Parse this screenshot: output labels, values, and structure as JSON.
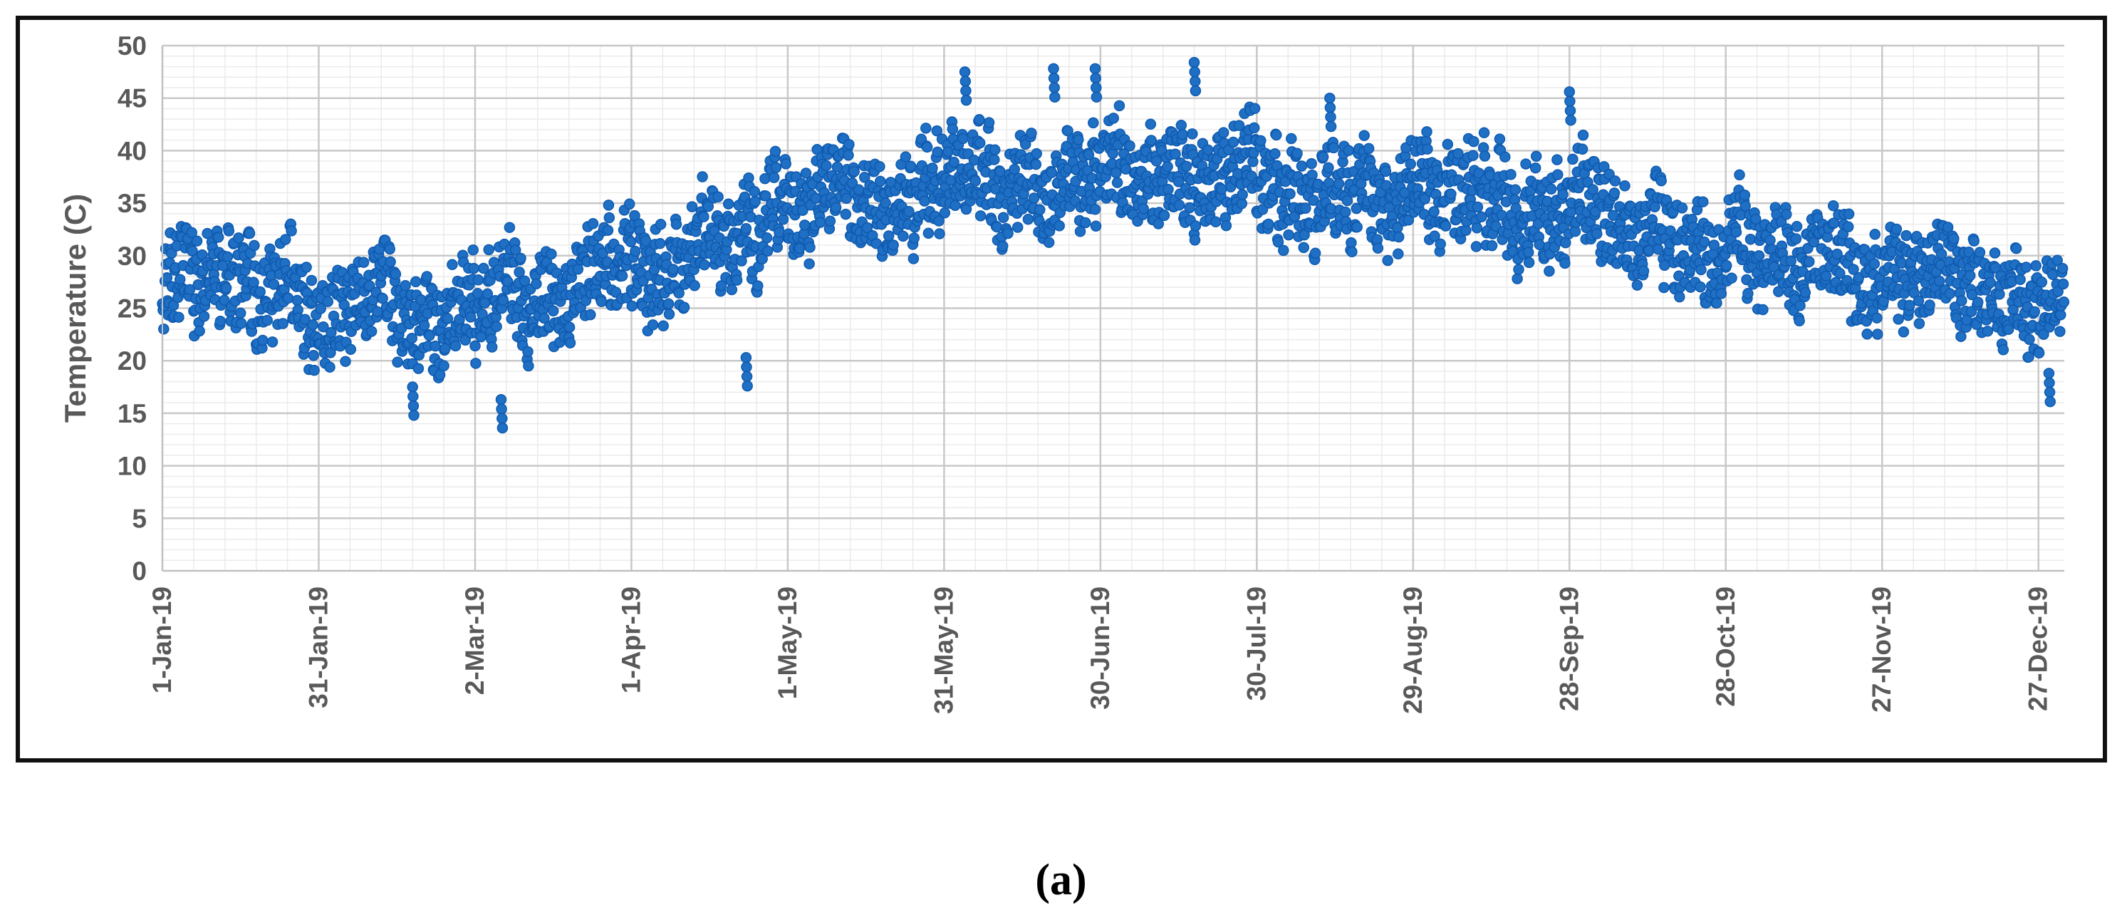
{
  "panel_label": "(a)",
  "colors": {
    "series": "#1F6FC5",
    "series_edge": "#0E5AAE",
    "grid_major": "#C8C8C8",
    "grid_minor": "#EBEBEB",
    "text": "#595959"
  },
  "chart_data": {
    "type": "scatter",
    "title": "",
    "xlabel": "",
    "ylabel": "Temperature (C)",
    "ylim": [
      0,
      50
    ],
    "yticks": [
      0,
      5,
      10,
      15,
      20,
      25,
      30,
      35,
      40,
      45,
      50
    ],
    "xlim": [
      "2019-01-01",
      "2019-12-31"
    ],
    "xticks": [
      {
        "label": "1-Jan-19",
        "date": "2019-01-01"
      },
      {
        "label": "31-Jan-19",
        "date": "2019-01-31"
      },
      {
        "label": "2-Mar-19",
        "date": "2019-03-02"
      },
      {
        "label": "1-Apr-19",
        "date": "2019-04-01"
      },
      {
        "label": "1-May-19",
        "date": "2019-05-01"
      },
      {
        "label": "31-May-19",
        "date": "2019-05-31"
      },
      {
        "label": "30-Jun-19",
        "date": "2019-06-30"
      },
      {
        "label": "30-Jul-19",
        "date": "2019-07-30"
      },
      {
        "label": "29-Aug-19",
        "date": "2019-08-29"
      },
      {
        "label": "28-Sep-19",
        "date": "2019-09-28"
      },
      {
        "label": "28-Oct-19",
        "date": "2019-10-28"
      },
      {
        "label": "27-Nov-19",
        "date": "2019-11-27"
      },
      {
        "label": "27-Dec-19",
        "date": "2019-12-27"
      }
    ],
    "grid": true,
    "legend": "none",
    "series": [
      {
        "sampling": "hourly",
        "daily_center": [
          {
            "date": "2019-01-01",
            "value": 28.5
          },
          {
            "date": "2019-01-16",
            "value": 28
          },
          {
            "date": "2019-01-31",
            "value": 26.5
          },
          {
            "date": "2019-02-15",
            "value": 24.5
          },
          {
            "date": "2019-03-02",
            "value": 24
          },
          {
            "date": "2019-03-17",
            "value": 27.5
          },
          {
            "date": "2019-04-01",
            "value": 28
          },
          {
            "date": "2019-04-16",
            "value": 31.5
          },
          {
            "date": "2019-05-01",
            "value": 34
          },
          {
            "date": "2019-05-16",
            "value": 35.5
          },
          {
            "date": "2019-05-31",
            "value": 37
          },
          {
            "date": "2019-06-15",
            "value": 37.5
          },
          {
            "date": "2019-06-30",
            "value": 37.5
          },
          {
            "date": "2019-07-15",
            "value": 37
          },
          {
            "date": "2019-07-30",
            "value": 36
          },
          {
            "date": "2019-08-14",
            "value": 35.5
          },
          {
            "date": "2019-08-29",
            "value": 35
          },
          {
            "date": "2019-09-13",
            "value": 35
          },
          {
            "date": "2019-09-28",
            "value": 34
          },
          {
            "date": "2019-10-13",
            "value": 32.5
          },
          {
            "date": "2019-10-28",
            "value": 31
          },
          {
            "date": "2019-11-12",
            "value": 29.5
          },
          {
            "date": "2019-11-27",
            "value": 28
          },
          {
            "date": "2019-12-12",
            "value": 27
          },
          {
            "date": "2019-12-31",
            "value": 25
          }
        ],
        "daily_range": [
          {
            "date": "2019-01-01",
            "min": 20.5,
            "max": 33.5
          },
          {
            "date": "2019-02-15",
            "min": 17.5,
            "max": 34.5
          },
          {
            "date": "2019-03-05",
            "min": 16.5,
            "max": 36.5
          },
          {
            "date": "2019-04-20",
            "min": 20,
            "max": 40
          },
          {
            "date": "2019-05-15",
            "min": 26,
            "max": 43
          },
          {
            "date": "2019-06-05",
            "min": 28,
            "max": 47.5
          },
          {
            "date": "2019-07-10",
            "min": 30,
            "max": 48.5
          },
          {
            "date": "2019-08-15",
            "min": 28,
            "max": 45
          },
          {
            "date": "2019-09-28",
            "min": 25,
            "max": 45.5
          },
          {
            "date": "2019-10-28",
            "min": 25,
            "max": 38.5
          },
          {
            "date": "2019-12-01",
            "min": 20,
            "max": 34.5
          },
          {
            "date": "2019-12-31",
            "min": 19,
            "max": 30
          }
        ],
        "peaks": [
          {
            "date": "2019-06-04",
            "value": 47.5
          },
          {
            "date": "2019-06-21",
            "value": 47.8
          },
          {
            "date": "2019-06-29",
            "value": 47.8
          },
          {
            "date": "2019-07-18",
            "value": 48.4
          },
          {
            "date": "2019-08-13",
            "value": 45
          },
          {
            "date": "2019-09-28",
            "value": 45.6
          }
        ],
        "troughs": [
          {
            "date": "2019-02-18",
            "value": 17.5
          },
          {
            "date": "2019-03-07",
            "value": 16.3
          },
          {
            "date": "2019-04-23",
            "value": 20.3
          },
          {
            "date": "2019-12-29",
            "value": 18.8
          }
        ]
      }
    ]
  }
}
